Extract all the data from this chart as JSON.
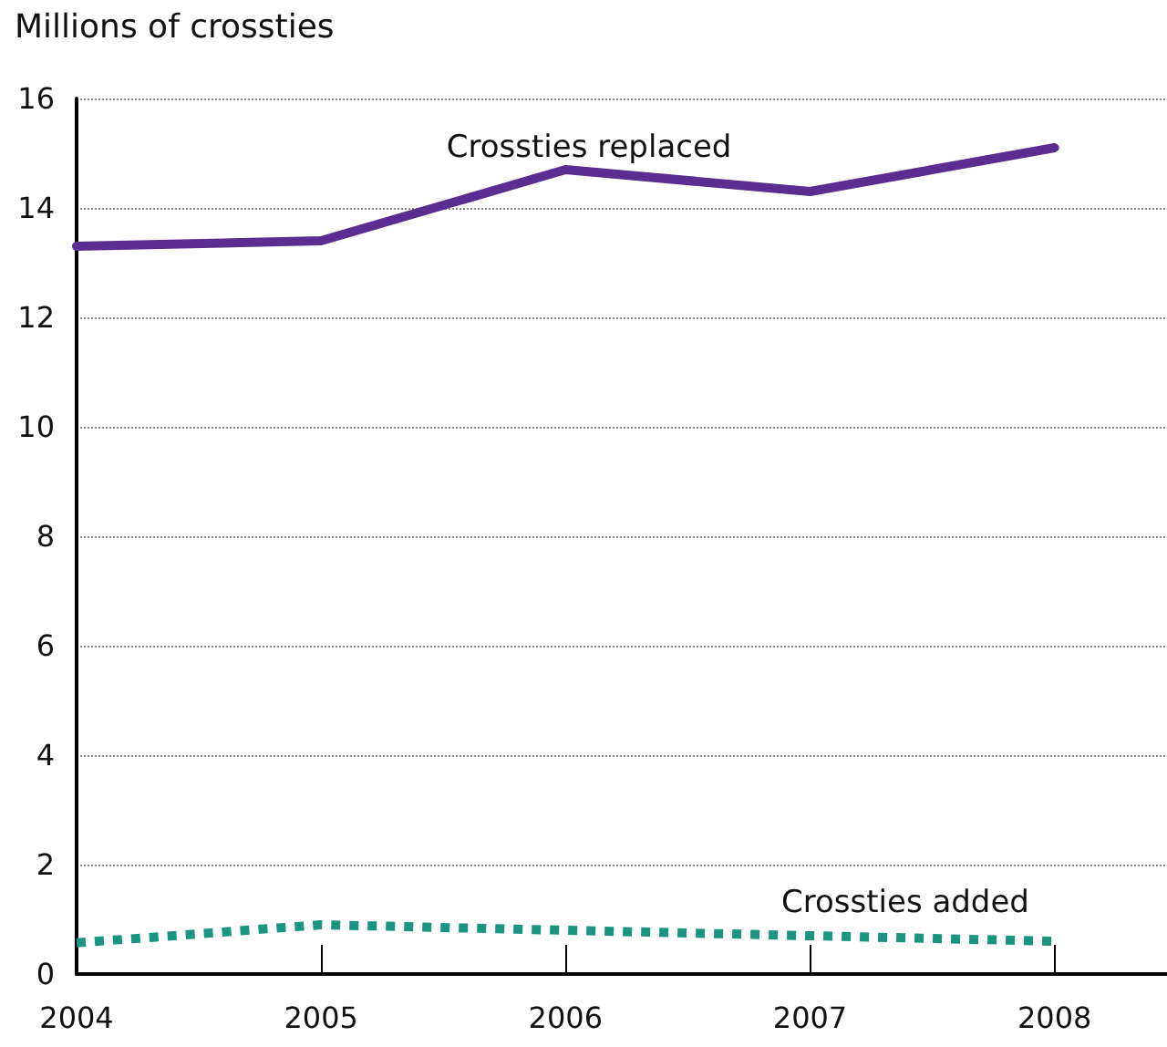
{
  "chart_data": {
    "type": "line",
    "ylabel": "Millions of crossties",
    "x": [
      2004,
      2005,
      2006,
      2007,
      2008
    ],
    "xlim": [
      2004,
      2008.46
    ],
    "xticks": [
      2004,
      2005,
      2006,
      2007,
      2008
    ],
    "ylim": [
      0,
      16
    ],
    "yticks": [
      0,
      2,
      4,
      6,
      8,
      10,
      12,
      14,
      16
    ],
    "grid": "y",
    "legend": false,
    "marker": "none",
    "series": [
      {
        "name": "Crossties replaced",
        "color": "#5b2d91",
        "values": [
          13.3,
          13.4,
          14.7,
          14.3,
          15.1
        ],
        "line_style": "solid"
      },
      {
        "name": "Crossties added",
        "color": "#1a9580",
        "values": [
          0.57,
          0.9,
          0.8,
          0.7,
          0.6
        ],
        "line_style": "dotted"
      }
    ]
  }
}
